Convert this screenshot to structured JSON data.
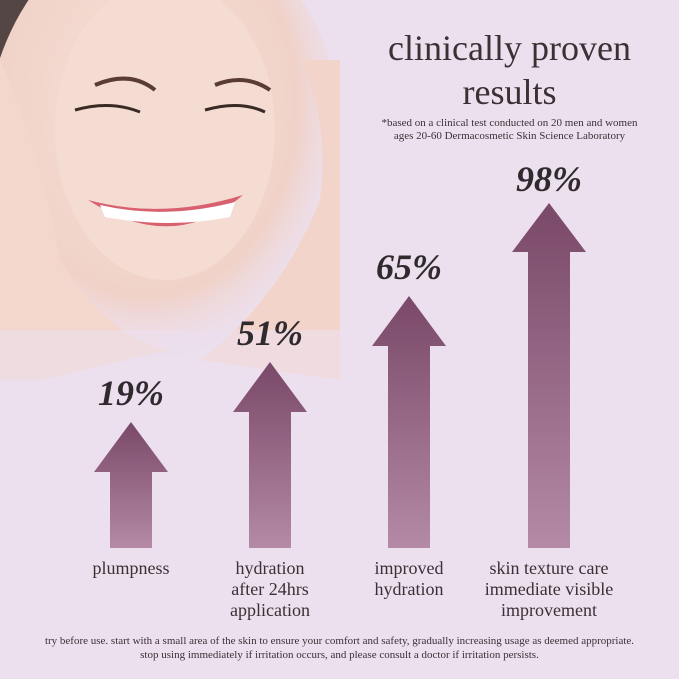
{
  "heading": {
    "title_line1": "clinically proven",
    "title_line2": "results",
    "note_line1": "*based on a clinical test conducted on 20 men and women",
    "note_line2": "ages 20-60 Dermacosmetic Skin Science Laboratory"
  },
  "results": [
    {
      "value": "19%",
      "label_lines": [
        "plumpness"
      ]
    },
    {
      "value": "51%",
      "label_lines": [
        "hydration",
        "after 24hrs",
        "application"
      ]
    },
    {
      "value": "65%",
      "label_lines": [
        "improved",
        "hydration"
      ]
    },
    {
      "value": "98%",
      "label_lines": [
        "skin texture care",
        "immediate visible",
        "improvement"
      ]
    }
  ],
  "footer": {
    "line1": "try before use. start with a small area of the skin to ensure your comfort and safety, gradually increasing usage as deemed appropriate.",
    "line2": "stop using immediately if irritation occurs, and please consult a doctor if irritation persists."
  },
  "colors": {
    "background": "#ece0ef",
    "arrow_top": "#7a4868",
    "arrow_bottom": "#b48aa6",
    "text": "#3b3034"
  }
}
